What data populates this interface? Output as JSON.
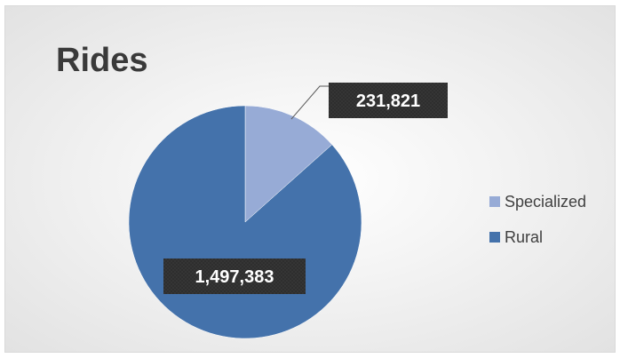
{
  "chart_data": {
    "type": "pie",
    "title": "Rides",
    "slices": [
      {
        "label": "Specialized",
        "value": 231821,
        "display": "231,821",
        "color": "#97abd6"
      },
      {
        "label": "Rural",
        "value": 1497383,
        "display": "1,497,383",
        "color": "#4472ab"
      }
    ],
    "legend_position": "right",
    "data_label_style": "dark-callout"
  }
}
